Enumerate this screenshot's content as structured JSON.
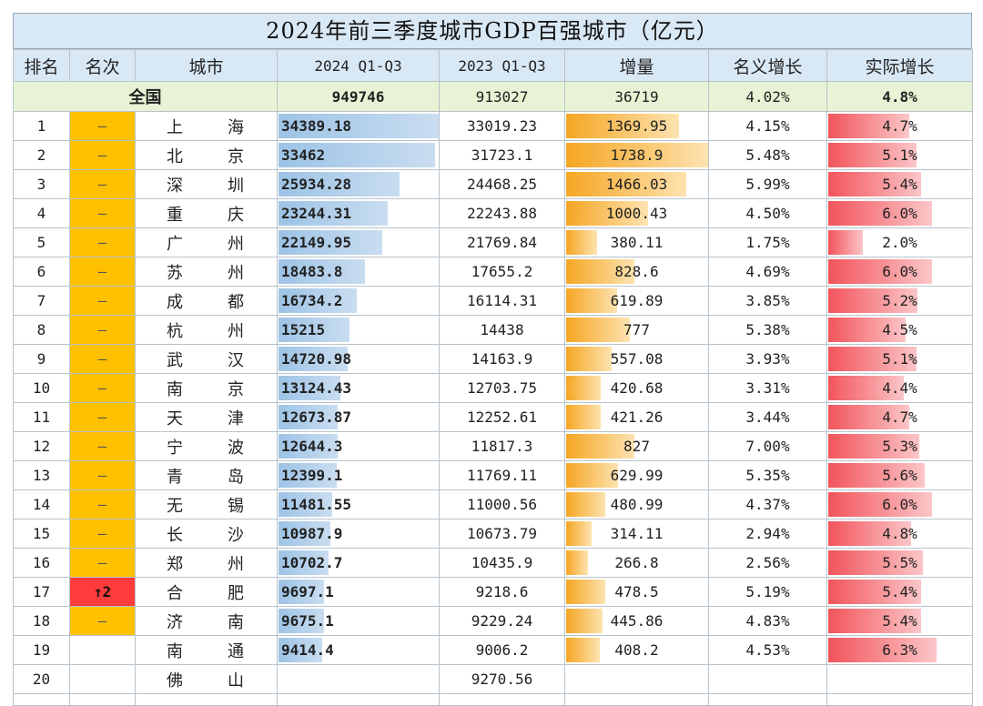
{
  "title": "2024年前三季度城市GDP百强城市（亿元）",
  "headers": [
    "排名",
    "名次",
    "城市",
    "2024 Q1-Q3",
    "2023 Q1-Q3",
    "增量",
    "名义增长",
    "实际增长"
  ],
  "national": {
    "label": "全国",
    "gdp2024": "949746",
    "gdp2023": "913027",
    "increase": "36719",
    "nominal": "4.02%",
    "real": "4.8%"
  },
  "rows": [
    {
      "rank": "1",
      "change": "—",
      "c1": "上",
      "c2": "海",
      "gdp2024": "34389.18",
      "gdp2023": "33019.23",
      "increase": "1369.95",
      "nominal": "4.15%",
      "real": "4.7%"
    },
    {
      "rank": "2",
      "change": "—",
      "c1": "北",
      "c2": "京",
      "gdp2024": "33462",
      "gdp2023": "31723.1",
      "increase": "1738.9",
      "nominal": "5.48%",
      "real": "5.1%"
    },
    {
      "rank": "3",
      "change": "—",
      "c1": "深",
      "c2": "圳",
      "gdp2024": "25934.28",
      "gdp2023": "24468.25",
      "increase": "1466.03",
      "nominal": "5.99%",
      "real": "5.4%"
    },
    {
      "rank": "4",
      "change": "—",
      "c1": "重",
      "c2": "庆",
      "gdp2024": "23244.31",
      "gdp2023": "22243.88",
      "increase": "1000.43",
      "nominal": "4.50%",
      "real": "6.0%"
    },
    {
      "rank": "5",
      "change": "—",
      "c1": "广",
      "c2": "州",
      "gdp2024": "22149.95",
      "gdp2023": "21769.84",
      "increase": "380.11",
      "nominal": "1.75%",
      "real": "2.0%"
    },
    {
      "rank": "6",
      "change": "—",
      "c1": "苏",
      "c2": "州",
      "gdp2024": "18483.8",
      "gdp2023": "17655.2",
      "increase": "828.6",
      "nominal": "4.69%",
      "real": "6.0%"
    },
    {
      "rank": "7",
      "change": "—",
      "c1": "成",
      "c2": "都",
      "gdp2024": "16734.2",
      "gdp2023": "16114.31",
      "increase": "619.89",
      "nominal": "3.85%",
      "real": "5.2%"
    },
    {
      "rank": "8",
      "change": "—",
      "c1": "杭",
      "c2": "州",
      "gdp2024": "15215",
      "gdp2023": "14438",
      "increase": "777",
      "nominal": "5.38%",
      "real": "4.5%"
    },
    {
      "rank": "9",
      "change": "—",
      "c1": "武",
      "c2": "汉",
      "gdp2024": "14720.98",
      "gdp2023": "14163.9",
      "increase": "557.08",
      "nominal": "3.93%",
      "real": "5.1%"
    },
    {
      "rank": "10",
      "change": "—",
      "c1": "南",
      "c2": "京",
      "gdp2024": "13124.43",
      "gdp2023": "12703.75",
      "increase": "420.68",
      "nominal": "3.31%",
      "real": "4.4%"
    },
    {
      "rank": "11",
      "change": "—",
      "c1": "天",
      "c2": "津",
      "gdp2024": "12673.87",
      "gdp2023": "12252.61",
      "increase": "421.26",
      "nominal": "3.44%",
      "real": "4.7%"
    },
    {
      "rank": "12",
      "change": "—",
      "c1": "宁",
      "c2": "波",
      "gdp2024": "12644.3",
      "gdp2023": "11817.3",
      "increase": "827",
      "nominal": "7.00%",
      "real": "5.3%"
    },
    {
      "rank": "13",
      "change": "—",
      "c1": "青",
      "c2": "岛",
      "gdp2024": "12399.1",
      "gdp2023": "11769.11",
      "increase": "629.99",
      "nominal": "5.35%",
      "real": "5.6%"
    },
    {
      "rank": "14",
      "change": "—",
      "c1": "无",
      "c2": "锡",
      "gdp2024": "11481.55",
      "gdp2023": "11000.56",
      "increase": "480.99",
      "nominal": "4.37%",
      "real": "6.0%"
    },
    {
      "rank": "15",
      "change": "—",
      "c1": "长",
      "c2": "沙",
      "gdp2024": "10987.9",
      "gdp2023": "10673.79",
      "increase": "314.11",
      "nominal": "2.94%",
      "real": "4.8%"
    },
    {
      "rank": "16",
      "change": "—",
      "c1": "郑",
      "c2": "州",
      "gdp2024": "10702.7",
      "gdp2023": "10435.9",
      "increase": "266.8",
      "nominal": "2.56%",
      "real": "5.5%"
    },
    {
      "rank": "17",
      "change": "↑2",
      "c1": "合",
      "c2": "肥",
      "gdp2024": "9697.1",
      "gdp2023": "9218.6",
      "increase": "478.5",
      "nominal": "5.19%",
      "real": "5.4%"
    },
    {
      "rank": "18",
      "change": "—",
      "c1": "济",
      "c2": "南",
      "gdp2024": "9675.1",
      "gdp2023": "9229.24",
      "increase": "445.86",
      "nominal": "4.83%",
      "real": "5.4%"
    },
    {
      "rank": "19",
      "change": "",
      "c1": "南",
      "c2": "通",
      "gdp2024": "9414.4",
      "gdp2023": "9006.2",
      "increase": "408.2",
      "nominal": "4.53%",
      "real": "6.3%"
    },
    {
      "rank": "20",
      "change": "",
      "c1": "佛",
      "c2": "山",
      "gdp2024": "",
      "gdp2023": "9270.56",
      "increase": "",
      "nominal": "",
      "real": ""
    }
  ],
  "colors": {
    "header_bg": "#d9e8f5",
    "national_bg": "#e8f3d5",
    "rank_same": "#ffc000",
    "rank_up": "#ff3b3b",
    "bar_blue": "#9dc3e6",
    "bar_orange": "#f5a623",
    "bar_red": "#f2545b"
  }
}
